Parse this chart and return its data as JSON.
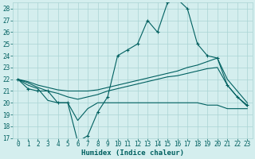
{
  "xlabel": "Humidex (Indice chaleur)",
  "x": [
    0,
    1,
    2,
    3,
    4,
    5,
    6,
    7,
    8,
    9,
    10,
    11,
    12,
    13,
    14,
    15,
    16,
    17,
    18,
    19,
    20,
    21,
    22,
    23
  ],
  "line1": [
    22,
    21.2,
    21,
    21,
    20,
    20,
    16.7,
    17.2,
    19.2,
    20.5,
    24,
    24.5,
    25,
    27,
    26,
    28.5,
    28.8,
    28,
    25,
    24,
    23.8,
    21.5,
    20.5,
    19.8
  ],
  "line2": [
    22,
    21.5,
    21.2,
    20.2,
    20,
    20,
    18.5,
    19.5,
    20,
    20,
    20,
    20,
    20,
    20,
    20,
    20,
    20,
    20,
    20,
    19.8,
    19.8,
    19.5,
    19.5,
    19.5
  ],
  "line3": [
    22,
    21.8,
    21.5,
    21.3,
    21.1,
    21,
    21,
    21,
    21.1,
    21.3,
    21.5,
    21.7,
    21.9,
    22.1,
    22.3,
    22.5,
    22.7,
    23,
    23.2,
    23.5,
    23.8,
    22,
    21,
    20
  ],
  "line4": [
    22,
    21.7,
    21.3,
    21,
    20.8,
    20.5,
    20.3,
    20.5,
    20.7,
    21,
    21.2,
    21.4,
    21.6,
    21.8,
    22,
    22.2,
    22.3,
    22.5,
    22.7,
    22.9,
    23,
    21.5,
    20.5,
    19.7
  ],
  "color": "#006060",
  "bg_color": "#d4eeee",
  "grid_color": "#aad4d4",
  "ylim_min": 17,
  "ylim_max": 28.5,
  "yticks": [
    17,
    18,
    19,
    20,
    21,
    22,
    23,
    24,
    25,
    26,
    27,
    28
  ],
  "tick_fontsize": 5.5,
  "xlabel_fontsize": 6.5,
  "lw": 0.8,
  "marker": "+"
}
